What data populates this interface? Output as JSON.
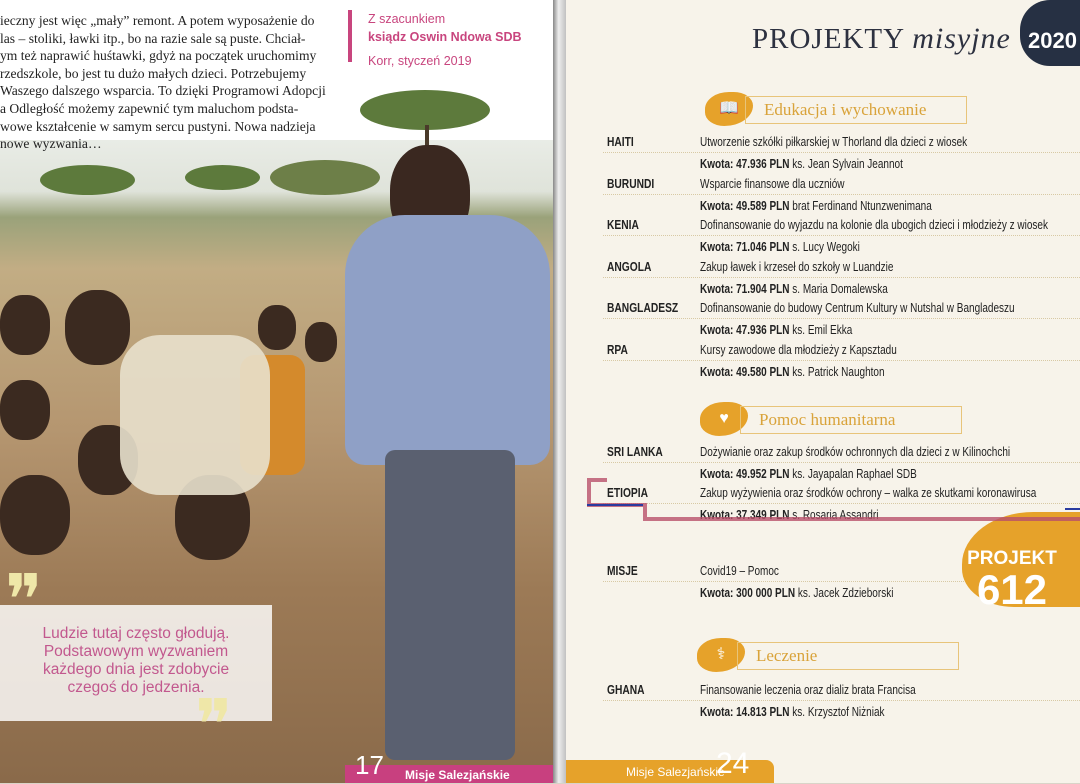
{
  "left_page": {
    "body_lines": [
      "ieczny jest więc „mały” remont. A potem wyposażenie do",
      "las – stoliki, ławki itp., bo na razie sale są puste. Chciał-",
      "ym też naprawić huśtawki, gdyż na początek uruchomimy",
      "rzedszkole, bo jest tu dużo małych dzieci. Potrzebujemy",
      "Waszego dalszego wsparcia. To dzięki Programowi Adopcji",
      "a Odległość możemy zapewnić tym maluchom podsta-",
      "wowe kształcenie w samym sercu pustyni. Nowa nadzieja",
      "nowe wyzwania…"
    ],
    "signature": {
      "greeting": "Z szacunkiem",
      "name": "ksiądz Oswin Ndowa SDB",
      "place_date": "Korr, styczeń 2019"
    },
    "quote": [
      "Ludzie tutaj często głodują.",
      "Podstawowym wyzwaniem",
      "każdego dnia jest zdobycie",
      "czegoś do jedzenia."
    ],
    "footer": {
      "page_number": "17",
      "magazine": "Misje Salezjańskie"
    },
    "accent": "#c8457e"
  },
  "right_page": {
    "title_main": "PROJEKTY",
    "title_italic": "misyjne",
    "year": "2020",
    "sections": [
      {
        "icon": "book-icon",
        "title": "Edukacja i wychowanie",
        "items": [
          {
            "country": "HAITI",
            "desc": "Utworzenie szkółki piłkarskiej w Thorland dla dzieci z wiosek",
            "amount": "Kwota: 47.936 PLN",
            "person": "ks. Jean Sylvain Jeannot"
          },
          {
            "country": "BURUNDI",
            "desc": "Wsparcie finansowe dla uczniów",
            "amount": "Kwota: 49.589 PLN",
            "person": "brat Ferdinand Ntunzwenimana"
          },
          {
            "country": "KENIA",
            "desc": "Dofinansowanie do wyjazdu na kolonie dla ubogich dzieci i młodzieży z wiosek",
            "amount": "Kwota: 71.046 PLN",
            "person": "s. Lucy Wegoki"
          },
          {
            "country": "ANGOLA",
            "desc": "Zakup ławek i krzeseł do szkoły w Luandzie",
            "amount": "Kwota: 71.904 PLN",
            "person": "s. Maria Domalewska"
          },
          {
            "country": "BANGLADESZ",
            "desc": "Dofinansowanie do budowy Centrum Kultury w Nutshal w Bangladeszu",
            "amount": "Kwota: 47.936 PLN",
            "person": "ks. Emil Ekka"
          },
          {
            "country": "RPA",
            "desc": "Kursy zawodowe dla młodzieży z Kapsztadu",
            "amount": "Kwota: 49.580 PLN",
            "person": "ks. Patrick Naughton"
          }
        ]
      },
      {
        "icon": "heart-hands-icon",
        "title": "Pomoc humanitarna",
        "items": [
          {
            "country": "SRI LANKA",
            "desc": "Dożywianie oraz zakup środków ochronnych dla dzieci z w Kilinochchi",
            "amount": "Kwota: 49.952 PLN",
            "person": "ks. Jayapalan Raphael SDB"
          },
          {
            "country": "ETIOPIA",
            "desc": "Zakup wyżywienia oraz środków ochrony – walka ze skutkami koronawirusa",
            "amount": "Kwota: 37.349 PLN",
            "person": "s. Rosaria Assandri"
          },
          {
            "country": "MISJE",
            "desc": "Covid19 – Pomoc",
            "amount": "Kwota: 300 000 PLN",
            "person": "ks. Jacek Zdzieborski"
          }
        ]
      },
      {
        "icon": "stethoscope-icon",
        "title": "Leczenie",
        "items": [
          {
            "country": "GHANA",
            "desc": "Finansowanie leczenia oraz dializ brata Francisa",
            "amount": "Kwota: 14.813 PLN",
            "person": "ks. Krzysztof Niżniak"
          }
        ]
      }
    ],
    "project_badge": {
      "label": "PROJEKT",
      "number": "612"
    },
    "footer": {
      "magazine": "Misje Salezjańskie",
      "page_number": "24"
    },
    "accent": "#e6a22a"
  }
}
